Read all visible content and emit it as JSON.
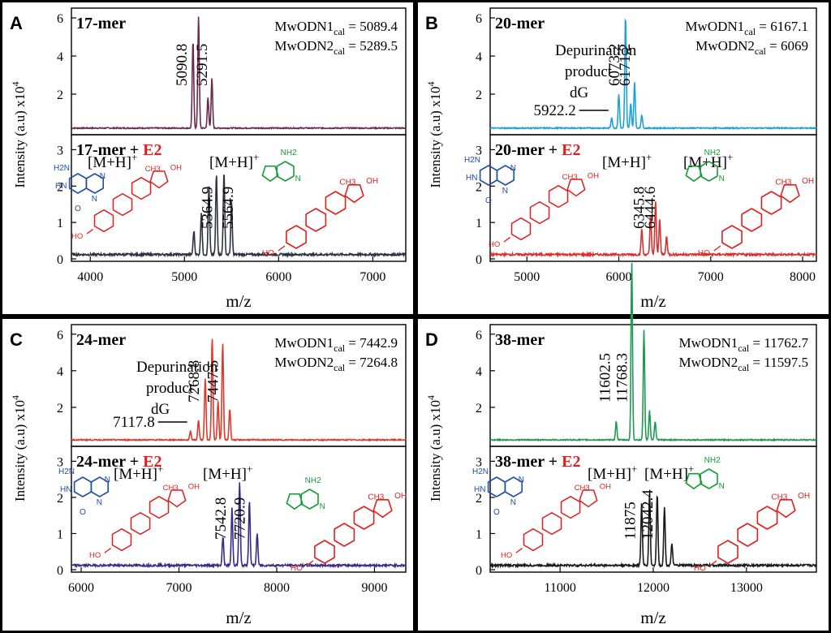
{
  "chart_data": [
    {
      "type": "line",
      "panel": "A",
      "x_unit_label": "m/z",
      "y_label": "Intensity (a.u) x10^4",
      "x_ticks": [
        4000,
        5000,
        6000,
        7000
      ],
      "xlim": [
        3800,
        7350
      ],
      "top": {
        "title": "17-mer",
        "color": "#6b2a4e",
        "y_ticks": [
          2,
          4,
          6
        ],
        "ylim": [
          0,
          6.3
        ],
        "peaks": [
          {
            "x": 5090.8,
            "y": 4.6
          },
          {
            "x": 5150,
            "y": 5.9
          },
          {
            "x": 5291.5,
            "y": 2.6
          },
          {
            "x": 5250,
            "y": 1.6
          }
        ],
        "peak_labels": [
          "5090.8",
          "5291.5"
        ],
        "mw": [
          {
            "name": "MwODN1",
            "sub": "cal",
            "value": "5089.4"
          },
          {
            "name": "MwODN2",
            "sub": "cal",
            "value": "5289.5"
          }
        ]
      },
      "bottom": {
        "title": "17-mer",
        "plus": " + ",
        "e2": "E2",
        "color": "#2b3140",
        "y_ticks": [
          0,
          1,
          2,
          3
        ],
        "ylim": [
          0,
          3.3
        ],
        "peaks": [
          {
            "x": 5100,
            "y": 0.65
          },
          {
            "x": 5180,
            "y": 1.15
          },
          {
            "x": 5260,
            "y": 1.85
          },
          {
            "x": 5340,
            "y": 2.2
          },
          {
            "x": 5420,
            "y": 2.3
          },
          {
            "x": 5500,
            "y": 1.45
          }
        ],
        "peak_labels": [
          "5364.9",
          "5564.9"
        ],
        "ion_labels": [
          "[M+H]",
          "[M+H]"
        ],
        "ion_sup": "+"
      }
    },
    {
      "type": "line",
      "panel": "B",
      "x_unit_label": "m/z",
      "y_label": "Intensity (a.u) x10^4",
      "x_ticks": [
        5000,
        6000,
        7000,
        8000
      ],
      "xlim": [
        4600,
        8150
      ],
      "top": {
        "title": "20-mer",
        "color": "#1ba3d8",
        "y_ticks": [
          2,
          4,
          6
        ],
        "ylim": [
          0,
          6.3
        ],
        "peaks": [
          {
            "x": 5922.2,
            "y": 0.55
          },
          {
            "x": 6000,
            "y": 1.8
          },
          {
            "x": 6073.2,
            "y": 5.9
          },
          {
            "x": 6130,
            "y": 1.3
          },
          {
            "x": 6171.2,
            "y": 2.4
          },
          {
            "x": 6250,
            "y": 0.7
          }
        ],
        "peak_labels": [
          "6073.2",
          "6171.2"
        ],
        "dep": {
          "lines": [
            "Depurination",
            "product",
            "dG"
          ],
          "value": "5922.2"
        },
        "mw": [
          {
            "name": "MwODN1",
            "sub": "cal",
            "value": "6167.1"
          },
          {
            "name": "MwODN2",
            "sub": "cal",
            "value": "6069"
          }
        ]
      },
      "bottom": {
        "title": "20-mer",
        "plus": " + ",
        "e2": "E2",
        "color": "#d83030",
        "y_ticks": [
          0,
          1,
          2,
          3
        ],
        "ylim": [
          0,
          3.3
        ],
        "peaks": [
          {
            "x": 6250,
            "y": 0.7
          },
          {
            "x": 6345.8,
            "y": 1.1
          },
          {
            "x": 6400,
            "y": 1.45
          },
          {
            "x": 6444.6,
            "y": 1.0
          },
          {
            "x": 6520,
            "y": 0.5
          }
        ],
        "peak_labels": [
          "6345.8",
          "6444.6"
        ],
        "ion_labels": [
          "[M+H]",
          "[M+H]"
        ],
        "ion_sup": "+"
      }
    },
    {
      "type": "line",
      "panel": "C",
      "x_unit_label": "m/z",
      "y_label": "Intensity (a.u) x10^4",
      "x_ticks": [
        6000,
        7000,
        8000,
        9000
      ],
      "xlim": [
        5900,
        9320
      ],
      "top": {
        "title": "24-mer",
        "color": "#e2382a",
        "y_ticks": [
          2,
          4,
          6
        ],
        "ylim": [
          0,
          6.3
        ],
        "peaks": [
          {
            "x": 7117.8,
            "y": 0.5
          },
          {
            "x": 7200,
            "y": 1.1
          },
          {
            "x": 7268.8,
            "y": 3.4
          },
          {
            "x": 7340,
            "y": 5.6
          },
          {
            "x": 7447.5,
            "y": 5.3
          },
          {
            "x": 7400,
            "y": 2.1
          },
          {
            "x": 7520,
            "y": 1.7
          }
        ],
        "peak_labels": [
          "7268.8",
          "7447.5"
        ],
        "dep": {
          "lines": [
            "Depurination",
            "product",
            "dG"
          ],
          "value": "7117.8"
        },
        "mw": [
          {
            "name": "MwODN1",
            "sub": "cal",
            "value": "7442.9"
          },
          {
            "name": "MwODN2",
            "sub": "cal",
            "value": "7264.8"
          }
        ]
      },
      "bottom": {
        "title": "24-mer",
        "plus": " + ",
        "e2": "E2",
        "color": "#3a2a8a",
        "y_ticks": [
          0,
          1,
          2,
          3
        ],
        "ylim": [
          0,
          3.3
        ],
        "peaks": [
          {
            "x": 7450,
            "y": 0.8
          },
          {
            "x": 7542.8,
            "y": 1.6
          },
          {
            "x": 7620,
            "y": 2.3
          },
          {
            "x": 7720.9,
            "y": 1.8
          },
          {
            "x": 7800,
            "y": 0.9
          }
        ],
        "peak_labels": [
          "7542.8",
          "7720.9"
        ],
        "ion_labels": [
          "[M+H]",
          "[M+H]"
        ],
        "ion_sup": "+"
      }
    },
    {
      "type": "line",
      "panel": "D",
      "x_unit_label": "m/z",
      "y_label": "Intensity (a.u) x10^4",
      "x_ticks": [
        11000,
        12000,
        13000
      ],
      "xlim": [
        10250,
        13750
      ],
      "top": {
        "title": "38-mer",
        "color": "#1e9a52",
        "y_ticks": [
          2,
          4,
          6
        ],
        "ylim": [
          0,
          6.3
        ],
        "peaks": [
          {
            "x": 11602.5,
            "y": 1.0
          },
          {
            "x": 11770,
            "y": 4.9
          },
          {
            "x": 11768.3,
            "y": 4.9
          },
          {
            "x": 11900,
            "y": 6.0
          },
          {
            "x": 11960,
            "y": 1.6
          },
          {
            "x": 12020,
            "y": 1.0
          }
        ],
        "peak_labels": [
          "11602.5",
          "11768.3"
        ],
        "mw": [
          {
            "name": "MwODN1",
            "sub": "cal",
            "value": "11762.7"
          },
          {
            "name": "MwODN2",
            "sub": "cal",
            "value": "11597.5"
          }
        ]
      },
      "bottom": {
        "title": "38-mer",
        "plus": " + ",
        "e2": "E2",
        "color": "#1a1a1a",
        "y_ticks": [
          0,
          1,
          2,
          3
        ],
        "ylim": [
          0,
          3.3
        ],
        "peaks": [
          {
            "x": 11875,
            "y": 1.7
          },
          {
            "x": 11960,
            "y": 2.0
          },
          {
            "x": 12042.4,
            "y": 2.0
          },
          {
            "x": 12120,
            "y": 1.6
          },
          {
            "x": 12200,
            "y": 0.6
          }
        ],
        "peak_labels": [
          "11875",
          "12042.4"
        ],
        "ion_labels": [
          "[M+H]",
          "[M+H]"
        ],
        "ion_sup": "+"
      }
    }
  ],
  "colors": {
    "e2_text": "#e02020",
    "estradiol": "#e02020",
    "pyrimidopyrimidine": "#1f4fa8",
    "adenine": "#1a9a3a"
  }
}
